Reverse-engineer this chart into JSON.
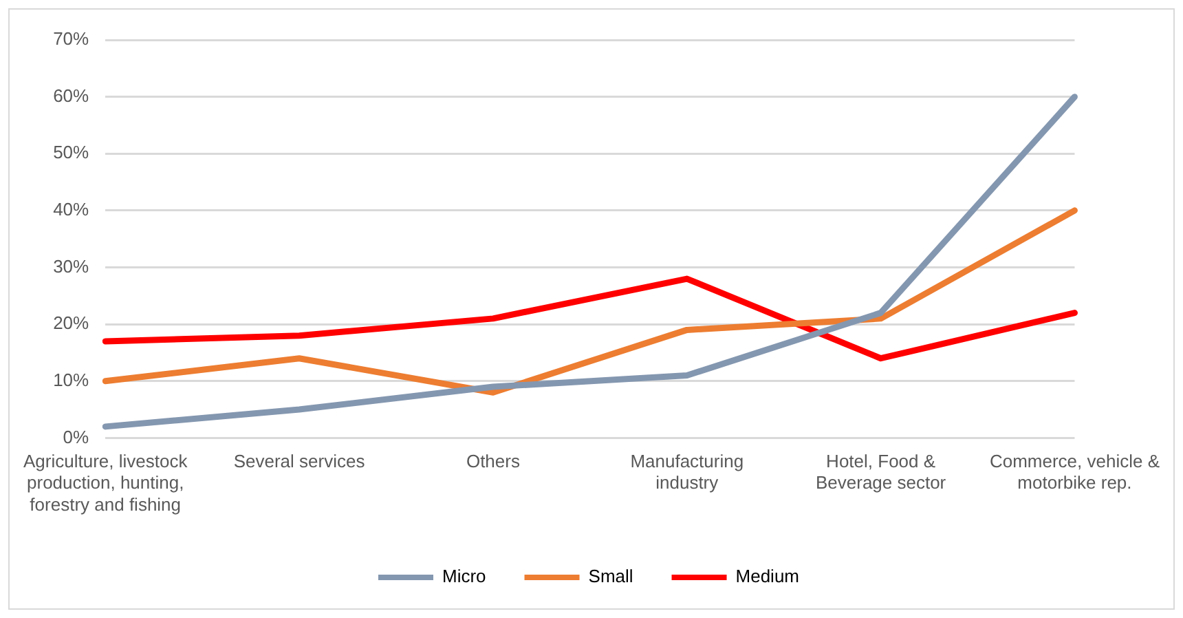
{
  "chart_data": {
    "type": "line",
    "categories": [
      "Agriculture, livestock production, hunting, forestry and fishing",
      "Several services",
      "Others",
      "Manufacturing industry",
      "Hotel, Food & Beverage sector",
      "Commerce, vehicle & motorbike rep."
    ],
    "series": [
      {
        "name": "Micro",
        "color": "#8497b0",
        "values": [
          2,
          5,
          9,
          11,
          22,
          60
        ]
      },
      {
        "name": "Small",
        "color": "#ed7d31",
        "values": [
          10,
          14,
          8,
          19,
          21,
          40
        ]
      },
      {
        "name": "Medium",
        "color": "#ff0000",
        "values": [
          17,
          18,
          21,
          28,
          14,
          22
        ]
      }
    ],
    "ylim": [
      0,
      70
    ],
    "yticks": [
      {
        "value": 0,
        "label": "0%"
      },
      {
        "value": 10,
        "label": "10%"
      },
      {
        "value": 20,
        "label": "20%"
      },
      {
        "value": 30,
        "label": "30%"
      },
      {
        "value": 40,
        "label": "40%"
      },
      {
        "value": 50,
        "label": "50%"
      },
      {
        "value": 60,
        "label": "60%"
      },
      {
        "value": 70,
        "label": "70%"
      }
    ],
    "grid": "y",
    "legend": "bottom",
    "marker": "none",
    "line_style": "solid"
  }
}
